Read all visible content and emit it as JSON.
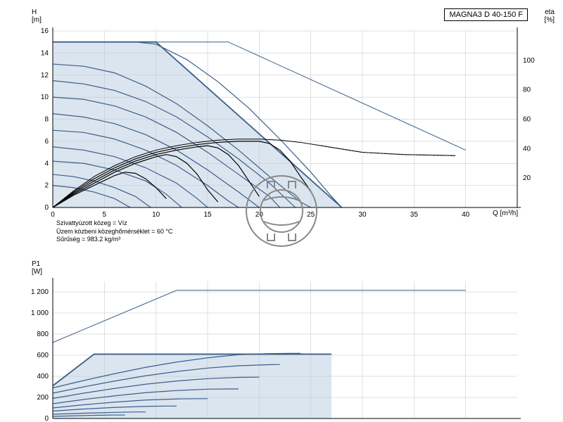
{
  "title": "MAGNA3 D 40-150 F",
  "info": {
    "line1": "Szivattyúzott közeg = Víz",
    "line2": "Üzem közbeni közeghőmérséklet = 60 °C",
    "line3": "Sűrűség = 983.2 kg/m³"
  },
  "top_chart": {
    "y_label": "H\n[m]",
    "y2_label": "eta\n[%]",
    "x_label": "Q [m³/h]",
    "ylim": [
      0,
      16
    ],
    "ytick": [
      0,
      2,
      4,
      6,
      8,
      10,
      12,
      14,
      16
    ],
    "y2lim": [
      0,
      100
    ],
    "y2tick": [
      20,
      40,
      60,
      80,
      100
    ],
    "xlim": [
      0,
      45
    ],
    "xtick": [
      0,
      5,
      10,
      15,
      20,
      25,
      30,
      35,
      40
    ],
    "grid_color": "#c0c0c0",
    "axis_color": "#000000",
    "curve_color": "#3a5f8a",
    "fill_color": "#b8cce0",
    "eff_color": "#000000",
    "curves": [
      [
        [
          0,
          2
        ],
        [
          2,
          1.8
        ],
        [
          4,
          1.4
        ],
        [
          6,
          0.8
        ],
        [
          7.5,
          0
        ]
      ],
      [
        [
          0,
          3
        ],
        [
          2,
          2.8
        ],
        [
          4,
          2.4
        ],
        [
          6,
          1.8
        ],
        [
          8,
          1
        ],
        [
          9.5,
          0
        ]
      ],
      [
        [
          0,
          4.2
        ],
        [
          3,
          4
        ],
        [
          6,
          3.4
        ],
        [
          9,
          2.4
        ],
        [
          11,
          1.2
        ],
        [
          12.5,
          0
        ]
      ],
      [
        [
          0,
          5.5
        ],
        [
          3,
          5.2
        ],
        [
          6,
          4.6
        ],
        [
          9,
          3.6
        ],
        [
          12,
          2.2
        ],
        [
          14,
          0.8
        ],
        [
          15,
          0
        ]
      ],
      [
        [
          0,
          7
        ],
        [
          3,
          6.8
        ],
        [
          6,
          6.2
        ],
        [
          9,
          5.2
        ],
        [
          12,
          3.8
        ],
        [
          15,
          2
        ],
        [
          17,
          0.6
        ],
        [
          18,
          0
        ]
      ],
      [
        [
          0,
          8.5
        ],
        [
          3,
          8.2
        ],
        [
          6,
          7.6
        ],
        [
          9,
          6.6
        ],
        [
          12,
          5.2
        ],
        [
          15,
          3.4
        ],
        [
          18,
          1.4
        ],
        [
          20,
          0
        ]
      ],
      [
        [
          0,
          10
        ],
        [
          3,
          9.8
        ],
        [
          6,
          9.2
        ],
        [
          9,
          8.2
        ],
        [
          12,
          6.8
        ],
        [
          15,
          5
        ],
        [
          18,
          3
        ],
        [
          21,
          1
        ],
        [
          22,
          0
        ]
      ],
      [
        [
          0,
          11.5
        ],
        [
          3,
          11.2
        ],
        [
          6,
          10.6
        ],
        [
          9,
          9.6
        ],
        [
          12,
          8.2
        ],
        [
          15,
          6.4
        ],
        [
          18,
          4.4
        ],
        [
          21,
          2.2
        ],
        [
          23.5,
          0
        ]
      ],
      [
        [
          0,
          13
        ],
        [
          3,
          12.8
        ],
        [
          6,
          12.2
        ],
        [
          9,
          11
        ],
        [
          12,
          9.4
        ],
        [
          15,
          7.4
        ],
        [
          18,
          5.2
        ],
        [
          21,
          2.8
        ],
        [
          24,
          0.5
        ],
        [
          25,
          0
        ]
      ],
      [
        [
          0,
          15
        ],
        [
          4,
          15
        ],
        [
          8,
          15
        ],
        [
          10,
          14.8
        ],
        [
          13,
          13.4
        ],
        [
          16,
          11.4
        ],
        [
          19,
          9
        ],
        [
          22,
          6.2
        ],
        [
          25,
          3.2
        ],
        [
          27,
          1
        ],
        [
          28,
          0
        ]
      ]
    ],
    "boundary": [
      [
        0,
        15
      ],
      [
        10,
        15
      ],
      [
        28,
        0
      ],
      [
        0,
        0
      ]
    ],
    "upper_line": [
      [
        0,
        15
      ],
      [
        17,
        15
      ],
      [
        40,
        5.2
      ]
    ],
    "eff_curves": [
      [
        [
          0,
          0
        ],
        [
          2,
          1.5
        ],
        [
          4,
          2.8
        ],
        [
          6,
          3.8
        ],
        [
          8,
          4.6
        ],
        [
          10,
          5.2
        ],
        [
          12,
          5.6
        ],
        [
          14,
          5.9
        ],
        [
          16,
          6.1
        ],
        [
          18,
          6.2
        ],
        [
          20,
          6.2
        ],
        [
          22,
          6.1
        ],
        [
          24,
          5.9
        ],
        [
          26,
          5.6
        ],
        [
          28,
          5.3
        ],
        [
          30,
          5
        ],
        [
          34,
          4.8
        ],
        [
          39,
          4.7
        ]
      ],
      [
        [
          0,
          0
        ],
        [
          2,
          1.4
        ],
        [
          4,
          2.6
        ],
        [
          6,
          3.6
        ],
        [
          8,
          4.4
        ],
        [
          10,
          5
        ],
        [
          12,
          5.4
        ],
        [
          14,
          5.7
        ],
        [
          16,
          5.9
        ],
        [
          18,
          6
        ],
        [
          20,
          6
        ],
        [
          21,
          5.8
        ],
        [
          22,
          5.2
        ],
        [
          23,
          4.2
        ],
        [
          24,
          2.8
        ],
        [
          25,
          1.5
        ]
      ],
      [
        [
          0,
          0
        ],
        [
          2,
          1.3
        ],
        [
          4,
          2.4
        ],
        [
          6,
          3.4
        ],
        [
          8,
          4.2
        ],
        [
          10,
          4.8
        ],
        [
          12,
          5.2
        ],
        [
          14,
          5.5
        ],
        [
          15,
          5.6
        ],
        [
          16,
          5.4
        ],
        [
          17,
          4.8
        ],
        [
          18,
          3.8
        ],
        [
          19,
          2.4
        ],
        [
          20,
          1
        ]
      ],
      [
        [
          0,
          0
        ],
        [
          2,
          1.2
        ],
        [
          4,
          2.2
        ],
        [
          6,
          3.2
        ],
        [
          8,
          4
        ],
        [
          10,
          4.6
        ],
        [
          11,
          4.8
        ],
        [
          12,
          4.6
        ],
        [
          13,
          4
        ],
        [
          14,
          3
        ],
        [
          15,
          1.6
        ],
        [
          16,
          0.5
        ]
      ],
      [
        [
          0,
          0
        ],
        [
          2,
          1.1
        ],
        [
          4,
          2
        ],
        [
          6,
          2.9
        ],
        [
          7,
          3.2
        ],
        [
          8,
          3.1
        ],
        [
          9,
          2.6
        ],
        [
          10,
          1.8
        ],
        [
          11,
          0.8
        ]
      ]
    ]
  },
  "bottom_chart": {
    "y_label": "P1\n[W]",
    "ylim": [
      0,
      1200
    ],
    "ytick": [
      0,
      200,
      400,
      600,
      800,
      1000,
      1200
    ],
    "xlim": [
      0,
      45
    ],
    "curve_color": "#3a5f8a",
    "fill_color": "#b8cce0",
    "curves": [
      [
        [
          0,
          20
        ],
        [
          2,
          25
        ],
        [
          4,
          30
        ],
        [
          6,
          33
        ],
        [
          7,
          33
        ]
      ],
      [
        [
          0,
          40
        ],
        [
          3,
          50
        ],
        [
          6,
          58
        ],
        [
          8,
          62
        ],
        [
          9,
          62
        ]
      ],
      [
        [
          0,
          70
        ],
        [
          3,
          90
        ],
        [
          6,
          105
        ],
        [
          9,
          115
        ],
        [
          11,
          118
        ],
        [
          12,
          118
        ]
      ],
      [
        [
          0,
          100
        ],
        [
          3,
          130
        ],
        [
          6,
          155
        ],
        [
          9,
          175
        ],
        [
          12,
          185
        ],
        [
          14,
          188
        ],
        [
          15,
          188
        ]
      ],
      [
        [
          0,
          140
        ],
        [
          3,
          180
        ],
        [
          6,
          215
        ],
        [
          9,
          245
        ],
        [
          12,
          265
        ],
        [
          15,
          278
        ],
        [
          17,
          280
        ],
        [
          18,
          280
        ]
      ],
      [
        [
          0,
          190
        ],
        [
          3,
          240
        ],
        [
          6,
          285
        ],
        [
          9,
          325
        ],
        [
          12,
          355
        ],
        [
          15,
          378
        ],
        [
          18,
          390
        ],
        [
          20,
          392
        ]
      ],
      [
        [
          0,
          240
        ],
        [
          3,
          300
        ],
        [
          6,
          355
        ],
        [
          9,
          405
        ],
        [
          12,
          445
        ],
        [
          15,
          478
        ],
        [
          18,
          500
        ],
        [
          21,
          510
        ],
        [
          22,
          512
        ]
      ],
      [
        [
          0,
          290
        ],
        [
          3,
          360
        ],
        [
          6,
          425
        ],
        [
          9,
          485
        ],
        [
          12,
          535
        ],
        [
          15,
          575
        ],
        [
          18,
          605
        ],
        [
          21,
          615
        ],
        [
          23,
          618
        ],
        [
          24,
          618
        ]
      ],
      [
        [
          0,
          310
        ],
        [
          4,
          610
        ],
        [
          8,
          610
        ],
        [
          12,
          610
        ],
        [
          16,
          610
        ],
        [
          20,
          610
        ],
        [
          24,
          610
        ],
        [
          27,
          610
        ]
      ]
    ],
    "boundary": [
      [
        0,
        310
      ],
      [
        4,
        610
      ],
      [
        27,
        610
      ],
      [
        27,
        0
      ],
      [
        0,
        0
      ]
    ],
    "upper_line": [
      [
        0,
        720
      ],
      [
        12,
        1215
      ],
      [
        40,
        1215
      ]
    ]
  },
  "logo_color": "#888888"
}
